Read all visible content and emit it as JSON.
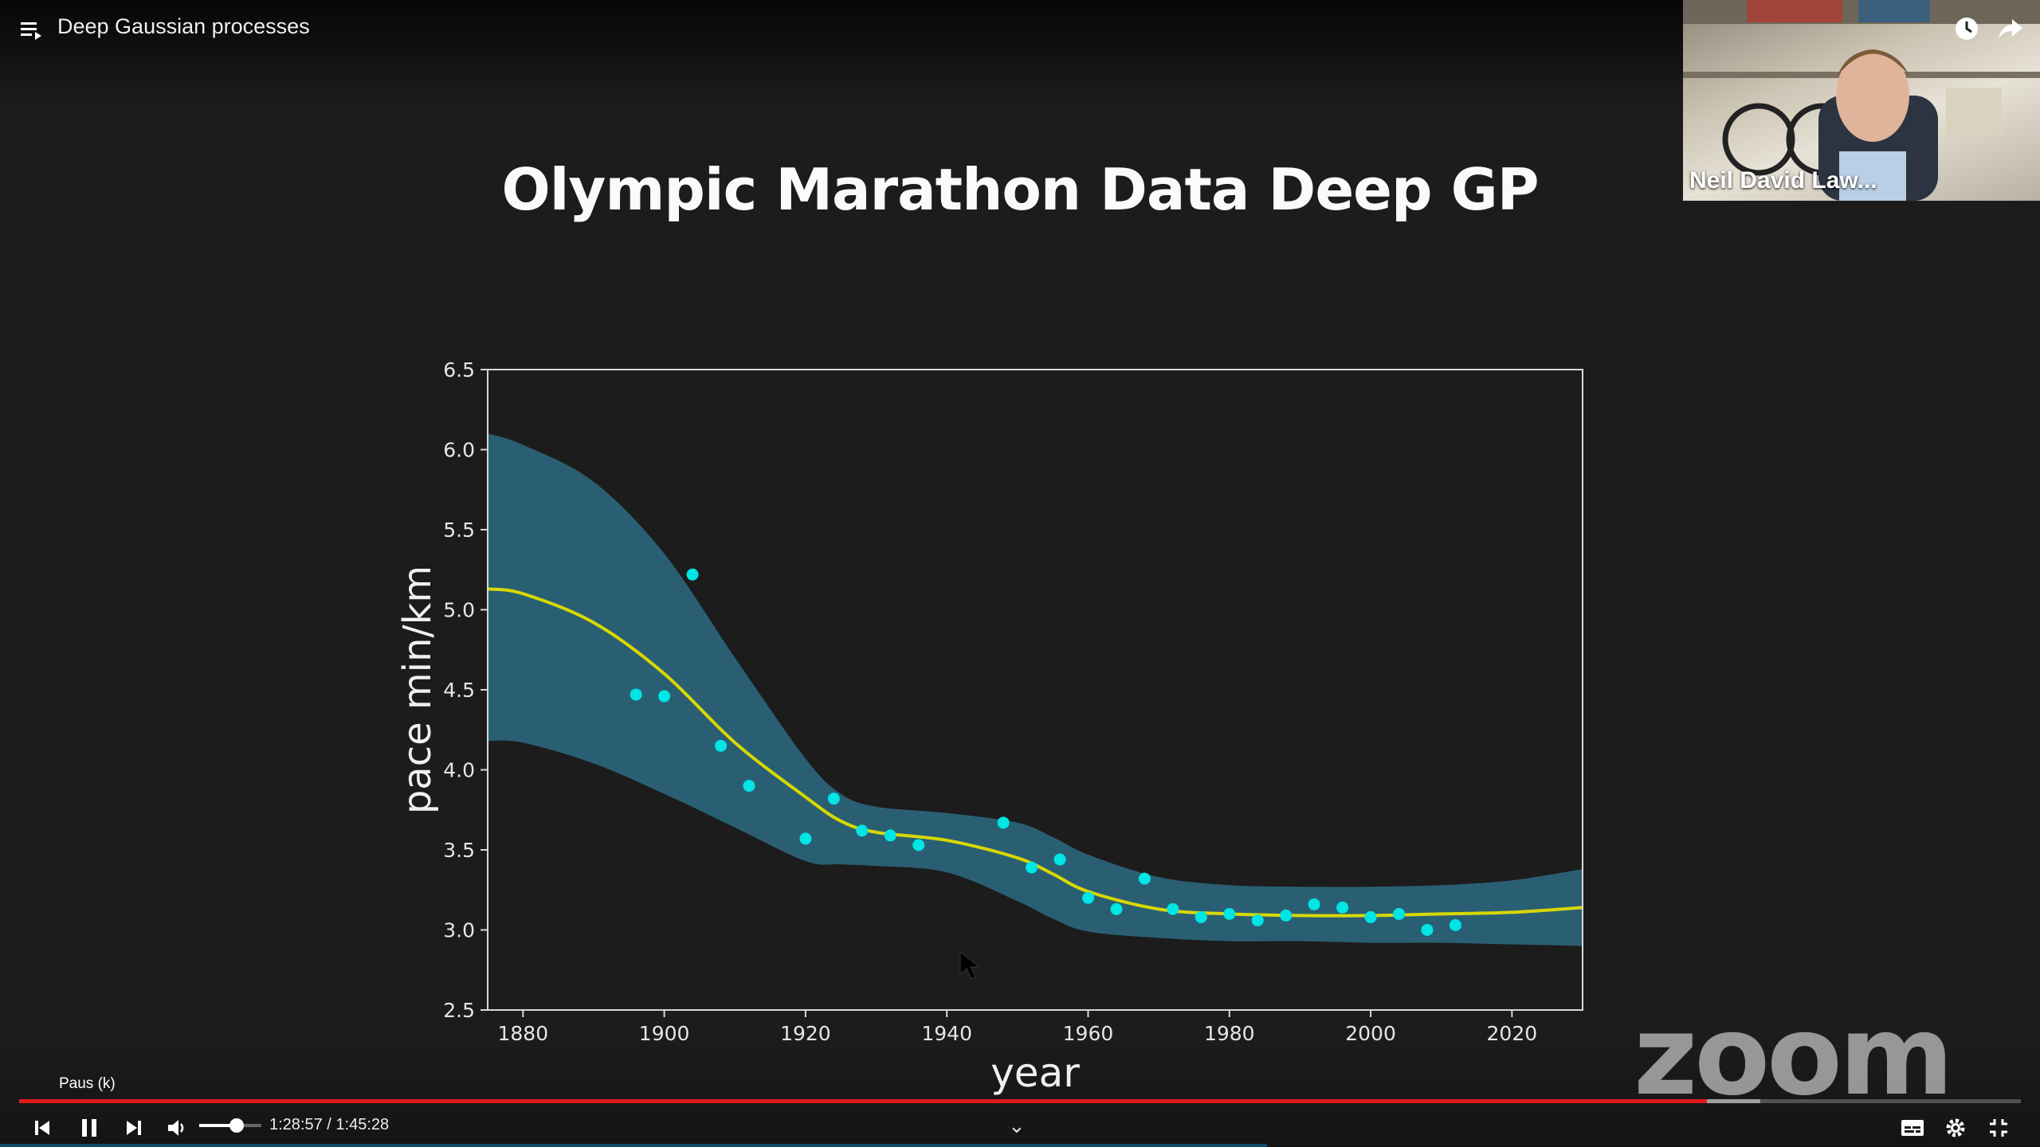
{
  "player": {
    "title": "Deep Gaussian processes",
    "pause_tooltip": "Paus (k)",
    "time_current": "1:28:57",
    "time_total": "1:45:28",
    "time_display": "1:28:57 / 1:45:28",
    "progress_played_fraction": 0.843,
    "progress_buffered_fraction": 0.87,
    "volume_fraction": 0.6,
    "accent_color": "#e01a1a"
  },
  "webcam": {
    "name": "Neil David Law..."
  },
  "watermark": {
    "text": "zoom"
  },
  "slide": {
    "title": "Olympic Marathon Data Deep GP"
  },
  "chart_data": {
    "type": "scatter",
    "xlabel": "year",
    "ylabel": "pace min/km",
    "xlim": [
      1875,
      2030
    ],
    "ylim": [
      2.5,
      6.5
    ],
    "xticks": [
      1880,
      1900,
      1920,
      1940,
      1960,
      1980,
      2000,
      2020
    ],
    "yticks": [
      "2.5",
      "3.0",
      "3.5",
      "4.0",
      "4.5",
      "5.0",
      "5.5",
      "6.0",
      "6.5"
    ],
    "grid": false,
    "colors": {
      "points": "#00e5e5",
      "mean": "#d8d800",
      "band": "#2a5f73"
    },
    "series": [
      {
        "type": "scatter",
        "x": [
          1896,
          1900,
          1904,
          1908,
          1912,
          1920,
          1924,
          1928,
          1932,
          1936,
          1948,
          1952,
          1956,
          1960,
          1964,
          1968,
          1972,
          1976,
          1980,
          1984,
          1988,
          1992,
          1996,
          2000,
          2004,
          2008,
          2012
        ],
        "y": [
          4.47,
          4.46,
          5.22,
          4.15,
          3.9,
          3.57,
          3.82,
          3.62,
          3.59,
          3.53,
          3.67,
          3.39,
          3.44,
          3.2,
          3.13,
          3.32,
          3.13,
          3.08,
          3.1,
          3.06,
          3.09,
          3.16,
          3.14,
          3.08,
          3.1,
          3.0,
          3.03
        ]
      },
      {
        "type": "line",
        "x": [
          1875,
          1880,
          1890,
          1900,
          1910,
          1920,
          1925,
          1930,
          1940,
          1950,
          1955,
          1960,
          1970,
          1980,
          1990,
          2000,
          2010,
          2020,
          2030
        ],
        "y": [
          5.13,
          5.1,
          4.92,
          4.6,
          4.17,
          3.83,
          3.68,
          3.61,
          3.56,
          3.45,
          3.35,
          3.24,
          3.13,
          3.1,
          3.09,
          3.09,
          3.1,
          3.11,
          3.14
        ]
      },
      {
        "type": "band",
        "x": [
          1875,
          1880,
          1890,
          1900,
          1910,
          1920,
          1925,
          1930,
          1940,
          1950,
          1955,
          1960,
          1970,
          1980,
          1990,
          2000,
          2010,
          2020,
          2030
        ],
        "upper": [
          6.1,
          6.03,
          5.8,
          5.35,
          4.7,
          4.07,
          3.85,
          3.77,
          3.73,
          3.67,
          3.58,
          3.47,
          3.33,
          3.28,
          3.27,
          3.27,
          3.28,
          3.31,
          3.38
        ],
        "lower": [
          4.18,
          4.17,
          4.04,
          3.85,
          3.64,
          3.43,
          3.41,
          3.4,
          3.36,
          3.18,
          3.07,
          2.99,
          2.95,
          2.93,
          2.93,
          2.92,
          2.92,
          2.91,
          2.9
        ]
      }
    ]
  }
}
